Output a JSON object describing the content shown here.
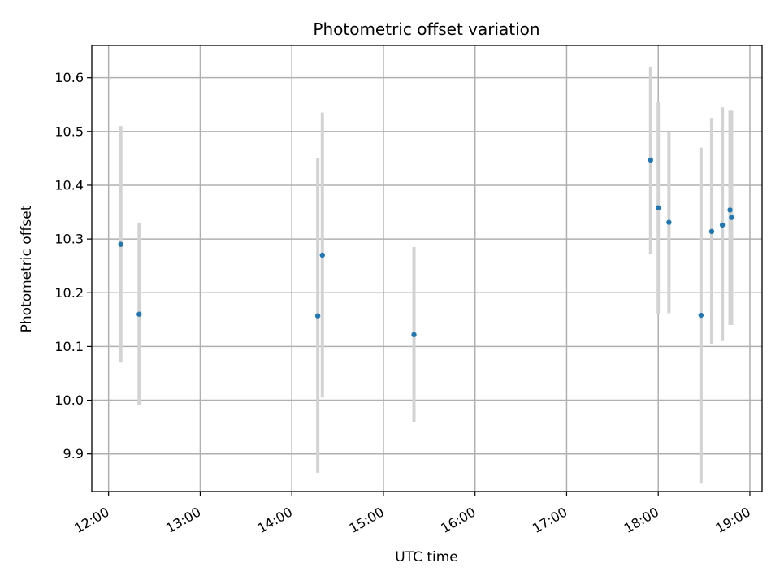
{
  "chart_data": {
    "type": "scatter",
    "title": "Photometric offset variation",
    "xlabel": "UTC time",
    "ylabel": "Photometric offset",
    "x_type": "time",
    "xlim": [
      "11:49",
      "19:08"
    ],
    "ylim": [
      9.83,
      10.66
    ],
    "xticks": [
      "12:00",
      "13:00",
      "14:00",
      "15:00",
      "16:00",
      "17:00",
      "18:00",
      "19:00"
    ],
    "yticks": [
      9.9,
      10.0,
      10.1,
      10.2,
      10.3,
      10.4,
      10.5,
      10.6
    ],
    "grid": true,
    "colors": {
      "point": "#1f77b4",
      "errorbar": "#d3d3d3"
    },
    "points": [
      {
        "time": "12:08",
        "y": 10.29,
        "ylow": 10.07,
        "yhigh": 10.51
      },
      {
        "time": "12:20",
        "y": 10.16,
        "ylow": 9.99,
        "yhigh": 10.33
      },
      {
        "time": "14:17",
        "y": 10.157,
        "ylow": 9.865,
        "yhigh": 10.45
      },
      {
        "time": "14:20",
        "y": 10.27,
        "ylow": 10.005,
        "yhigh": 10.535
      },
      {
        "time": "15:20",
        "y": 10.122,
        "ylow": 9.96,
        "yhigh": 10.285
      },
      {
        "time": "17:55",
        "y": 10.447,
        "ylow": 10.273,
        "yhigh": 10.62
      },
      {
        "time": "18:00",
        "y": 10.358,
        "ylow": 10.16,
        "yhigh": 10.555
      },
      {
        "time": "18:07",
        "y": 10.331,
        "ylow": 10.162,
        "yhigh": 10.5
      },
      {
        "time": "18:28",
        "y": 10.158,
        "ylow": 9.845,
        "yhigh": 10.47
      },
      {
        "time": "18:35",
        "y": 10.314,
        "ylow": 10.105,
        "yhigh": 10.525
      },
      {
        "time": "18:42",
        "y": 10.326,
        "ylow": 10.11,
        "yhigh": 10.545
      },
      {
        "time": "18:47",
        "y": 10.354,
        "ylow": 10.14,
        "yhigh": 10.54
      },
      {
        "time": "18:48",
        "y": 10.34,
        "ylow": 10.14,
        "yhigh": 10.54
      }
    ]
  }
}
